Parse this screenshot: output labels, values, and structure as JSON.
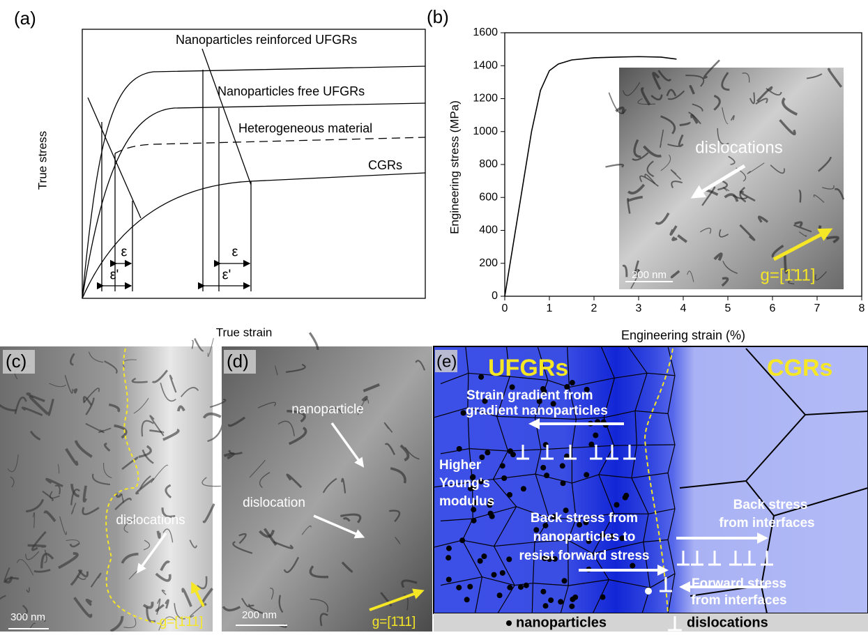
{
  "panel_a": {
    "label": "(a)",
    "x_axis_label": "True  strain",
    "y_axis_label": "True  stress",
    "curves": [
      "Nanoparticles reinforced UFGRs",
      "Nanoparticles free UFGRs",
      "Heterogeneous material",
      "CGRs"
    ],
    "strain_labels": [
      "ε",
      "ε'",
      "ε",
      "ε'"
    ]
  },
  "panel_b": {
    "label": "(b)",
    "type": "line",
    "x_axis_label": "Engineering strain (%)",
    "y_axis_label": "Engineering stress (MPa)",
    "xlim": [
      0,
      8
    ],
    "ylim": [
      0,
      1600
    ],
    "xticks": [
      0,
      1,
      2,
      3,
      4,
      5,
      6,
      7,
      8
    ],
    "yticks": [
      0,
      200,
      400,
      600,
      800,
      1000,
      1200,
      1400,
      1600
    ],
    "x": [
      0,
      0.3,
      0.6,
      0.8,
      1.0,
      1.2,
      1.5,
      2.0,
      2.5,
      3.0,
      3.5,
      3.85
    ],
    "y": [
      0,
      500,
      1000,
      1250,
      1370,
      1410,
      1435,
      1448,
      1452,
      1455,
      1452,
      1440
    ],
    "inset": {
      "annotation": "dislocations",
      "scale_bar": "200 nm",
      "g_vector": "g=[1̄11]"
    }
  },
  "panel_c": {
    "label": "(c)",
    "annotation": "dislocations",
    "scale_bar": "300 nm",
    "g_vector": "g=[1̄11]"
  },
  "panel_d": {
    "label": "(d)",
    "annotations": [
      "nanoparticle",
      "dislocation"
    ],
    "scale_bar": "200 nm",
    "g_vector": "g=[1̄11]"
  },
  "panel_e": {
    "label": "(e)",
    "regions": [
      "UFGRs",
      "CGRs"
    ],
    "strain_gradient": [
      "Strain gradient  from",
      "gradient nanoparticles"
    ],
    "modulus": [
      "Higher",
      "Young's",
      "modulus"
    ],
    "back_stress_particles": [
      "Back stress from",
      "nanoparticles to",
      "resist forward stress"
    ],
    "back_stress_interfaces": [
      "Back stress",
      "from interfaces"
    ],
    "forward_stress": [
      "Forward stress",
      "from interfaces"
    ],
    "legend": [
      "nanoparticles",
      "dislocations"
    ]
  }
}
